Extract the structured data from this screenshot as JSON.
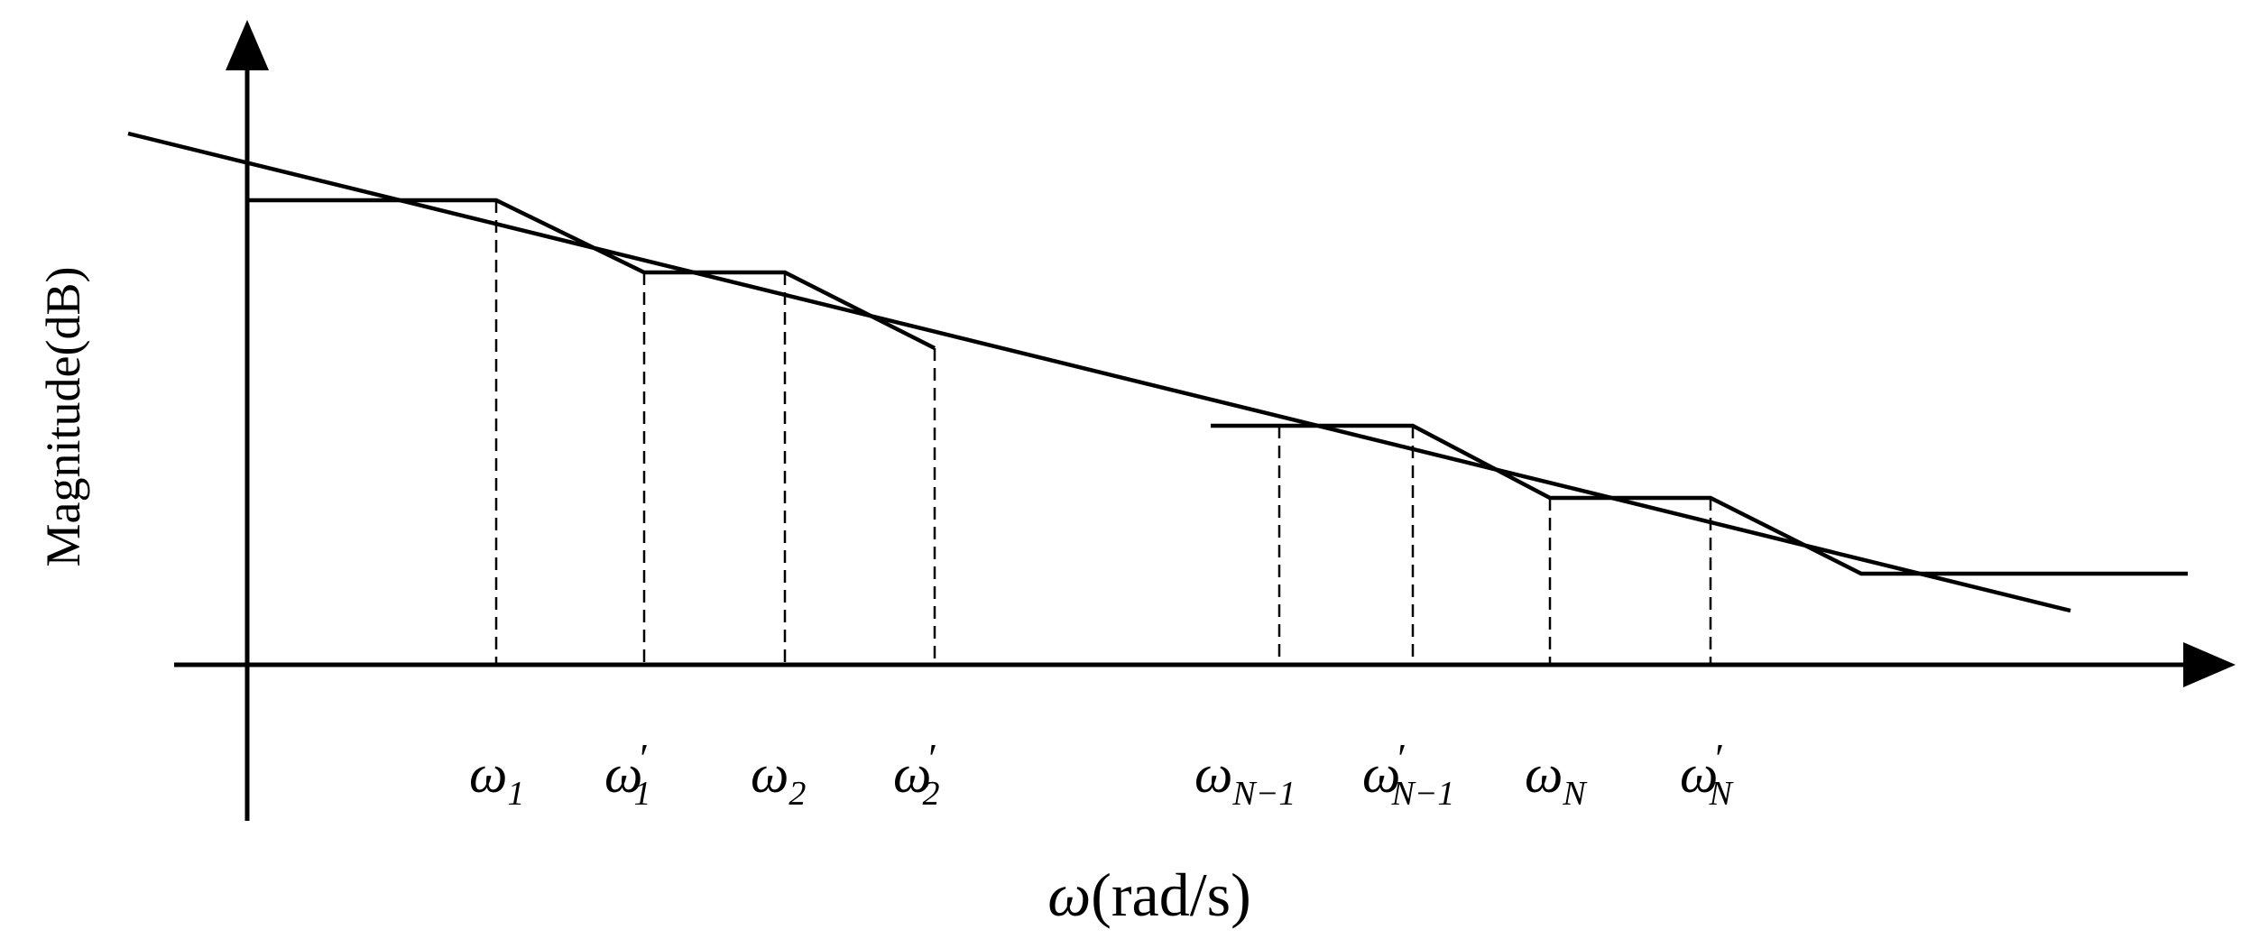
{
  "axes": {
    "x_label": {
      "symbol": "ω",
      "unit": "rad/s"
    },
    "y_label": "Magnitude(dB)"
  },
  "tick_labels": [
    {
      "base": "ω",
      "prime": "",
      "sub": "1"
    },
    {
      "base": "ω",
      "prime": "′",
      "sub": "1"
    },
    {
      "base": "ω",
      "prime": "",
      "sub": "2"
    },
    {
      "base": "ω",
      "prime": "′",
      "sub": "2"
    },
    {
      "base": "ω",
      "prime": "",
      "sub": "N−1"
    },
    {
      "base": "ω",
      "prime": "′",
      "sub": "N−1"
    },
    {
      "base": "ω",
      "prime": "",
      "sub": "N"
    },
    {
      "base": "ω",
      "prime": "′",
      "sub": "N"
    }
  ],
  "colors": {
    "line": "#000000",
    "background": "#ffffff"
  }
}
